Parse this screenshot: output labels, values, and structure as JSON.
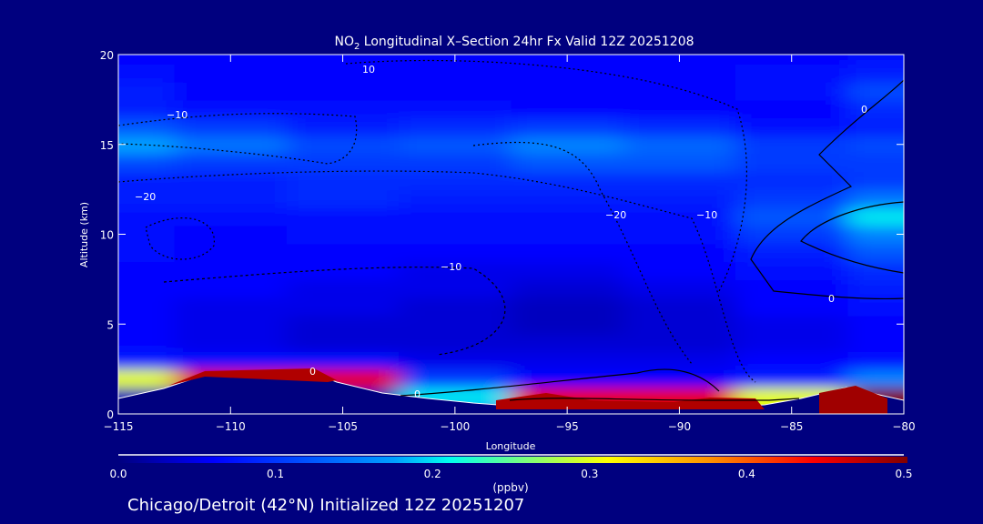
{
  "chart_data": {
    "type": "heatmap",
    "title_prefix": "NO",
    "title_sub": "2",
    "title_rest": " Longitudinal X–Section 24hr  Fx Valid 12Z 20251208",
    "xlabel": "Longitude",
    "ylabel": "Altitude (km)",
    "xlim": [
      -115,
      -80
    ],
    "ylim": [
      0,
      20
    ],
    "x_ticks": [
      "−115",
      "−110",
      "−105",
      "−100",
      "−95",
      "−90",
      "−85",
      "−80"
    ],
    "x_tick_values": [
      -115,
      -110,
      -105,
      -100,
      -95,
      -90,
      -85,
      -80
    ],
    "y_ticks": [
      "0",
      "5",
      "10",
      "15",
      "20"
    ],
    "y_tick_values": [
      0,
      5,
      10,
      15,
      20
    ],
    "longitudes": [
      -115,
      -110,
      -105,
      -100,
      -95,
      -90,
      -85,
      -80
    ],
    "altitudes": [
      0,
      1,
      2,
      3,
      4,
      5,
      6,
      7,
      8,
      9,
      10,
      11,
      12,
      13,
      14,
      15,
      16,
      17,
      18,
      19,
      20
    ],
    "values": [
      [
        0.02,
        0.02,
        0.02,
        0.15,
        0.45,
        0.45,
        0.3,
        0.5
      ],
      [
        0.03,
        0.03,
        0.03,
        0.2,
        0.45,
        0.45,
        0.3,
        0.5
      ],
      [
        0.3,
        0.45,
        0.45,
        0.1,
        0.06,
        0.06,
        0.08,
        0.15
      ],
      [
        0.08,
        0.07,
        0.07,
        0.05,
        0.05,
        0.05,
        0.06,
        0.07
      ],
      [
        0.06,
        0.05,
        0.04,
        0.04,
        0.04,
        0.04,
        0.05,
        0.06
      ],
      [
        0.06,
        0.05,
        0.04,
        0.04,
        0.03,
        0.04,
        0.05,
        0.06
      ],
      [
        0.06,
        0.05,
        0.05,
        0.04,
        0.03,
        0.04,
        0.06,
        0.07
      ],
      [
        0.06,
        0.06,
        0.05,
        0.05,
        0.04,
        0.05,
        0.06,
        0.08
      ],
      [
        0.06,
        0.06,
        0.06,
        0.05,
        0.05,
        0.06,
        0.07,
        0.09
      ],
      [
        0.07,
        0.06,
        0.06,
        0.06,
        0.06,
        0.06,
        0.08,
        0.12
      ],
      [
        0.07,
        0.06,
        0.07,
        0.07,
        0.07,
        0.07,
        0.1,
        0.15
      ],
      [
        0.07,
        0.07,
        0.07,
        0.07,
        0.07,
        0.07,
        0.12,
        0.2
      ],
      [
        0.08,
        0.08,
        0.09,
        0.08,
        0.08,
        0.08,
        0.1,
        0.14
      ],
      [
        0.08,
        0.08,
        0.09,
        0.09,
        0.09,
        0.09,
        0.09,
        0.1
      ],
      [
        0.11,
        0.1,
        0.1,
        0.1,
        0.12,
        0.12,
        0.1,
        0.1
      ],
      [
        0.17,
        0.14,
        0.11,
        0.12,
        0.15,
        0.13,
        0.1,
        0.11
      ],
      [
        0.12,
        0.1,
        0.08,
        0.09,
        0.1,
        0.09,
        0.07,
        0.08
      ],
      [
        0.08,
        0.07,
        0.07,
        0.07,
        0.06,
        0.06,
        0.06,
        0.09
      ],
      [
        0.08,
        0.06,
        0.06,
        0.06,
        0.06,
        0.06,
        0.07,
        0.11
      ],
      [
        0.07,
        0.06,
        0.06,
        0.06,
        0.06,
        0.06,
        0.07,
        0.08
      ],
      [
        0.06,
        0.06,
        0.06,
        0.06,
        0.06,
        0.06,
        0.06,
        0.07
      ]
    ],
    "contour_labels": [
      "10",
      "−10",
      "−20",
      "−20",
      "−10",
      "0",
      "0",
      "0",
      "−10",
      "0"
    ],
    "colorbar": {
      "range": [
        0.0,
        0.5
      ],
      "ticks": [
        "0.0",
        "0.1",
        "0.2",
        "0.3",
        "0.4",
        "0.5"
      ],
      "unit": "(ppbv)"
    },
    "footer": "Chicago/Detroit (42°N) Initialized 12Z 20251207"
  }
}
